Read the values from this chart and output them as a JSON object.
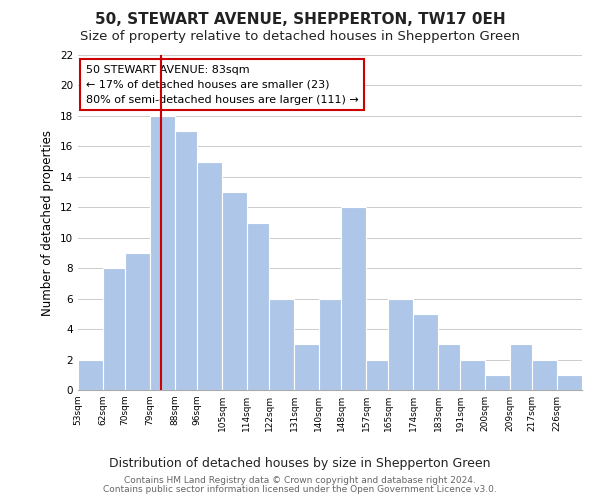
{
  "title": "50, STEWART AVENUE, SHEPPERTON, TW17 0EH",
  "subtitle": "Size of property relative to detached houses in Shepperton Green",
  "xlabel": "Distribution of detached houses by size in Shepperton Green",
  "ylabel": "Number of detached properties",
  "bin_labels": [
    "53sqm",
    "62sqm",
    "70sqm",
    "79sqm",
    "88sqm",
    "96sqm",
    "105sqm",
    "114sqm",
    "122sqm",
    "131sqm",
    "140sqm",
    "148sqm",
    "157sqm",
    "165sqm",
    "174sqm",
    "183sqm",
    "191sqm",
    "200sqm",
    "209sqm",
    "217sqm",
    "226sqm"
  ],
  "bin_edges": [
    53,
    62,
    70,
    79,
    88,
    96,
    105,
    114,
    122,
    131,
    140,
    148,
    157,
    165,
    174,
    183,
    191,
    200,
    209,
    217,
    226,
    235
  ],
  "counts": [
    2,
    8,
    9,
    18,
    17,
    15,
    13,
    11,
    6,
    3,
    6,
    12,
    2,
    6,
    5,
    3,
    2,
    1,
    3,
    2,
    1
  ],
  "bar_color": "#aec6e8",
  "bar_edge_color": "#ffffff",
  "grid_color": "#cccccc",
  "vline_x": 83,
  "vline_color": "#cc0000",
  "annotation_line1": "50 STEWART AVENUE: 83sqm",
  "annotation_line2": "← 17% of detached houses are smaller (23)",
  "annotation_line3": "80% of semi-detached houses are larger (111) →",
  "annotation_box_color": "#ffffff",
  "annotation_box_edge_color": "#cc0000",
  "ylim": [
    0,
    22
  ],
  "yticks": [
    0,
    2,
    4,
    6,
    8,
    10,
    12,
    14,
    16,
    18,
    20,
    22
  ],
  "footer_line1": "Contains HM Land Registry data © Crown copyright and database right 2024.",
  "footer_line2": "Contains public sector information licensed under the Open Government Licence v3.0.",
  "title_fontsize": 11,
  "subtitle_fontsize": 9.5,
  "annot_fontsize": 8.0,
  "xlabel_fontsize": 9,
  "ylabel_fontsize": 8.5,
  "footer_fontsize": 6.5
}
